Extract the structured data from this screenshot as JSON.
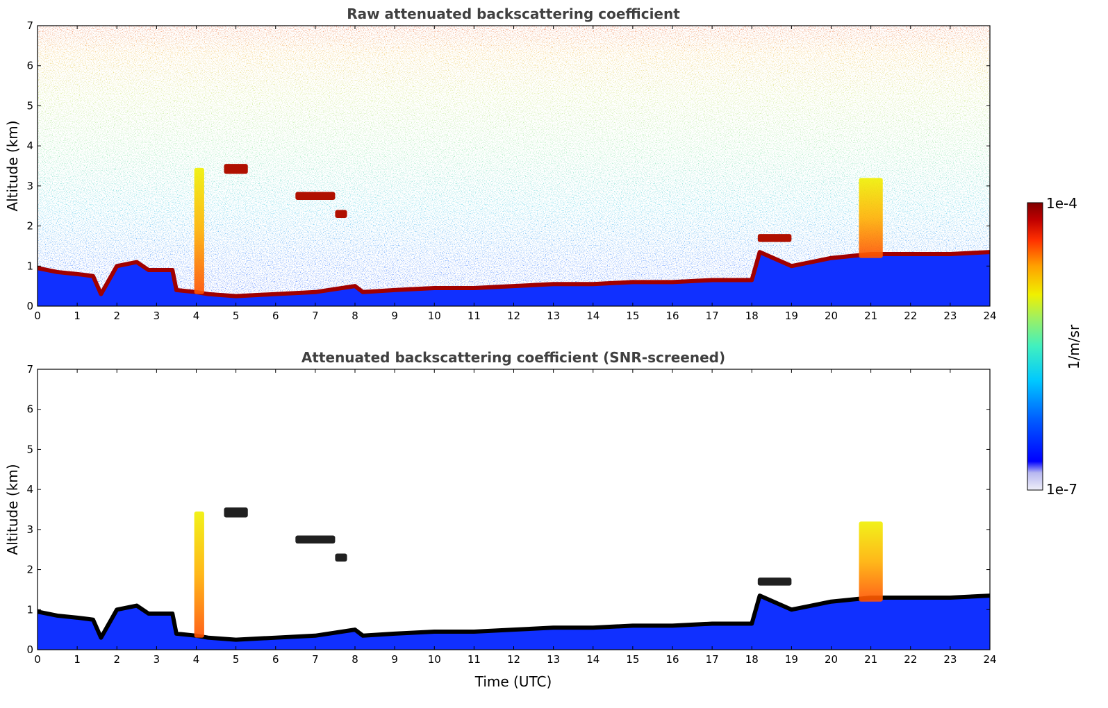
{
  "chart_data": [
    {
      "type": "heatmap",
      "title": "Raw attenuated backscattering coefficient",
      "xlabel": "",
      "ylabel": "Altitude (km)",
      "xlim": [
        0,
        24
      ],
      "ylim": [
        0,
        7
      ],
      "x_ticks": [
        "0",
        "1",
        "2",
        "3",
        "4",
        "5",
        "6",
        "7",
        "8",
        "9",
        "10",
        "11",
        "12",
        "13",
        "14",
        "15",
        "16",
        "17",
        "18",
        "19",
        "20",
        "21",
        "22",
        "23",
        "24"
      ],
      "y_ticks": [
        "0",
        "1",
        "2",
        "3",
        "4",
        "5",
        "6",
        "7"
      ],
      "boundary_layer_top_km": [
        [
          0,
          0.95
        ],
        [
          0.5,
          0.85
        ],
        [
          1.0,
          0.8
        ],
        [
          1.4,
          0.75
        ],
        [
          1.6,
          0.3
        ],
        [
          2.0,
          1.0
        ],
        [
          2.5,
          1.1
        ],
        [
          2.8,
          0.9
        ],
        [
          3.4,
          0.9
        ],
        [
          3.5,
          0.4
        ],
        [
          4.0,
          0.35
        ],
        [
          4.3,
          0.3
        ],
        [
          5.0,
          0.25
        ],
        [
          6.0,
          0.3
        ],
        [
          7.0,
          0.35
        ],
        [
          8.0,
          0.5
        ],
        [
          8.2,
          0.35
        ],
        [
          9.0,
          0.4
        ],
        [
          10.0,
          0.45
        ],
        [
          11.0,
          0.45
        ],
        [
          12.0,
          0.5
        ],
        [
          13.0,
          0.55
        ],
        [
          14.0,
          0.55
        ],
        [
          15.0,
          0.6
        ],
        [
          16.0,
          0.6
        ],
        [
          17.0,
          0.65
        ],
        [
          18.0,
          0.65
        ],
        [
          18.2,
          1.7
        ],
        [
          19.0,
          1.0
        ],
        [
          19.5,
          1.1
        ],
        [
          20.0,
          1.2
        ],
        [
          21.0,
          1.3
        ],
        [
          22.0,
          1.3
        ],
        [
          23.0,
          1.3
        ],
        [
          24.0,
          1.35
        ]
      ],
      "cloud_features": [
        {
          "x": [
            3.95,
            4.2
          ],
          "altitude_km": [
            0.3,
            3.45
          ]
        },
        {
          "x": [
            4.7,
            5.3
          ],
          "altitude_km": [
            3.3,
            3.55
          ]
        },
        {
          "x": [
            6.5,
            7.5
          ],
          "altitude_km": [
            2.65,
            2.85
          ]
        },
        {
          "x": [
            7.5,
            7.8
          ],
          "altitude_km": [
            2.2,
            2.4
          ]
        },
        {
          "x": [
            18.15,
            19.0
          ],
          "altitude_km": [
            1.6,
            1.8
          ]
        },
        {
          "x": [
            20.7,
            21.3
          ],
          "altitude_km": [
            1.2,
            3.2
          ]
        }
      ]
    },
    {
      "type": "heatmap",
      "title": "Attenuated backscattering coefficient (SNR-screened)",
      "xlabel": "Time (UTC)",
      "ylabel": "Altitude (km)",
      "xlim": [
        0,
        24
      ],
      "ylim": [
        0,
        7
      ],
      "x_ticks": [
        "0",
        "1",
        "2",
        "3",
        "4",
        "5",
        "6",
        "7",
        "8",
        "9",
        "10",
        "11",
        "12",
        "13",
        "14",
        "15",
        "16",
        "17",
        "18",
        "19",
        "20",
        "21",
        "22",
        "23",
        "24"
      ],
      "y_ticks": [
        "0",
        "1",
        "2",
        "3",
        "4",
        "5",
        "6",
        "7"
      ]
    }
  ],
  "colorbar": {
    "label": "1/m/sr",
    "max_label": "1e-4",
    "min_label": "1e-7",
    "colormap": [
      "#eeeef8",
      "#c8c8f0",
      "#0000ff",
      "#0060ff",
      "#00c8ff",
      "#40f0c0",
      "#a0f060",
      "#f0f000",
      "#ffa000",
      "#ff3000",
      "#c00000",
      "#800000"
    ]
  }
}
